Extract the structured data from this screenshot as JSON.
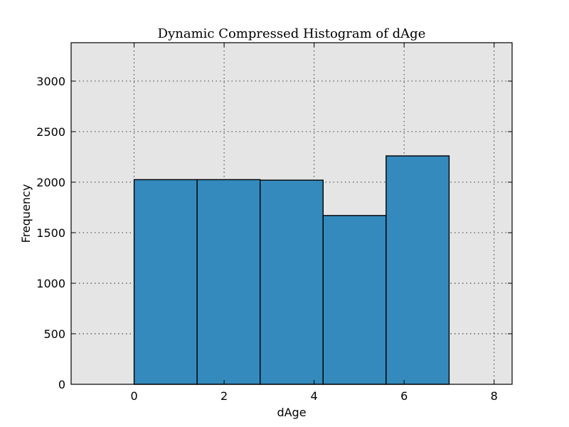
{
  "chart_data": {
    "type": "bar",
    "title": "Dynamic Compressed Histogram of dAge",
    "xlabel": "dAge",
    "ylabel": "Frequency",
    "xlim": [
      -1.4,
      8.4
    ],
    "ylim": [
      0,
      3380
    ],
    "xticks": [
      0,
      2,
      4,
      6,
      8
    ],
    "yticks": [
      0,
      500,
      1000,
      1500,
      2000,
      2500,
      3000
    ],
    "grid": true,
    "bin_edges": [
      0,
      1.4,
      2.8,
      4.2,
      5.6,
      7.0
    ],
    "values": [
      2025,
      2025,
      2020,
      1670,
      2260
    ],
    "bar_color": "#348abd",
    "plot_background": "#e5e5e5"
  }
}
